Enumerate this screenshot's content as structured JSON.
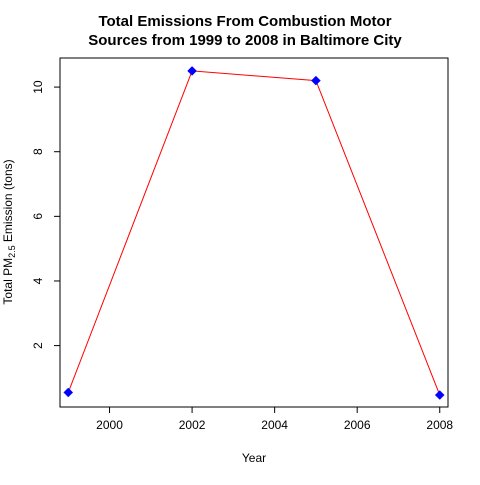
{
  "chart_data": {
    "type": "line",
    "title_lines": [
      "Total Emissions From Combustion Motor",
      "Sources from 1999 to 2008 in Baltimore City"
    ],
    "xlabel": "Year",
    "ylabel": {
      "prefix": "Total PM",
      "subscript": "2.5",
      "suffix": " Emission (tons)"
    },
    "x": [
      1999,
      2002,
      2005,
      2008
    ],
    "y": [
      0.55,
      10.5,
      10.2,
      0.47
    ],
    "xlim": [
      1998.8,
      2008.2
    ],
    "ylim": [
      0.1,
      10.9
    ],
    "x_ticks": [
      2000,
      2002,
      2004,
      2006,
      2008
    ],
    "y_ticks": [
      2,
      4,
      6,
      8,
      10
    ],
    "line_color": "#ff0000",
    "marker_color": "#0000ff",
    "marker_shape": "diamond",
    "grid": false,
    "legend": "none"
  }
}
